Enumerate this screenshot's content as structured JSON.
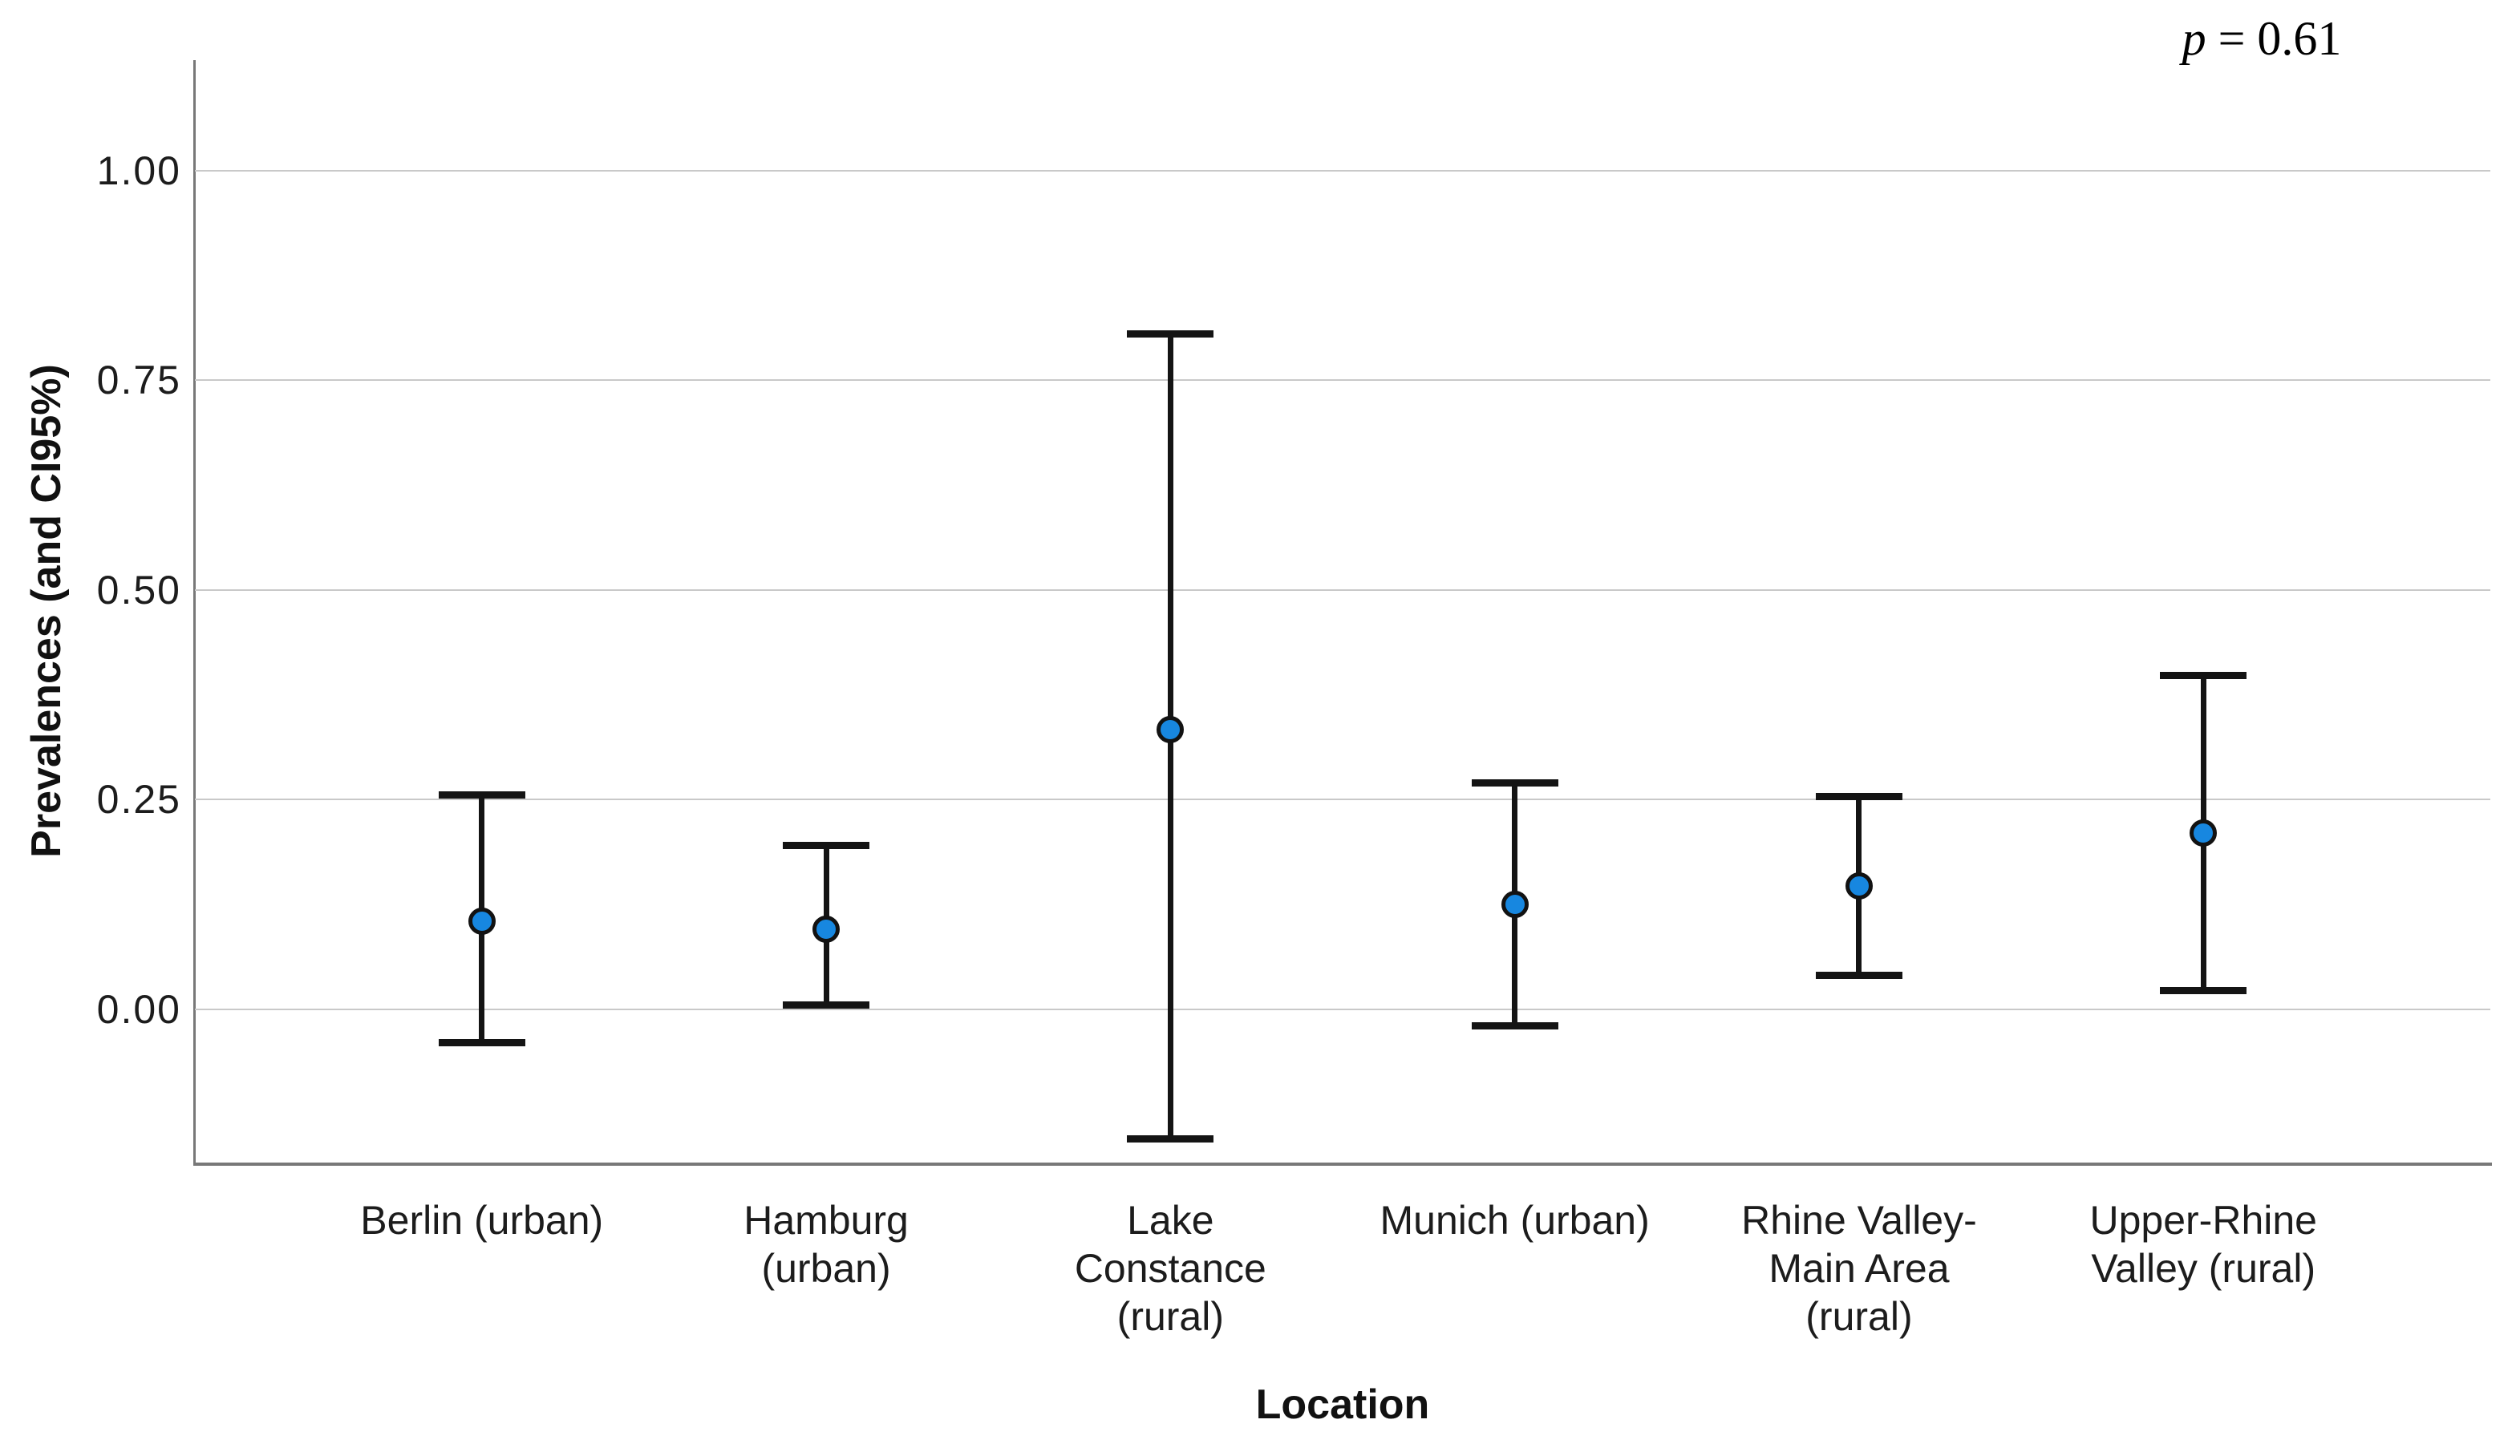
{
  "chart_data": {
    "type": "scatter",
    "subtype": "point-estimates-with-95ci-error-bars",
    "title": "",
    "xlabel": "Location",
    "ylabel": "Prevalences (and CI95%)",
    "annotation": {
      "var": "p",
      "rest": " = 0.61"
    },
    "categories": [
      "Berlin (urban)",
      "Hamburg (urban)",
      "Lake Constance (rural)",
      "Munich (urban)",
      "Rhine Valley-Main Area (rural)",
      "Upper-Rhine Valley (rural)"
    ],
    "category_label_lines": [
      [
        "Berlin (urban)"
      ],
      [
        "Hamburg",
        "(urban)"
      ],
      [
        "Lake",
        "Constance",
        "(rural)"
      ],
      [
        "Munich (urban)"
      ],
      [
        "Rhine Valley-",
        "Main Area",
        "(rural)"
      ],
      [
        "Upper-Rhine",
        "Valley (rural)"
      ]
    ],
    "series": [
      {
        "name": "Prevalence",
        "values": [
          0.105,
          0.095,
          0.333,
          0.125,
          0.147,
          0.21
        ],
        "ci_low": [
          -0.04,
          0.005,
          -0.155,
          -0.02,
          0.04,
          0.022
        ],
        "ci_high": [
          0.255,
          0.195,
          0.805,
          0.27,
          0.253,
          0.398
        ]
      }
    ],
    "y_ticks": [
      {
        "label": "1.00",
        "value": 1.0
      },
      {
        "label": "0.75",
        "value": 0.75
      },
      {
        "label": "0.50",
        "value": 0.5
      },
      {
        "label": "0.25",
        "value": 0.25
      },
      {
        "label": "0.00",
        "value": 0.0
      }
    ],
    "ylim": [
      -0.183,
      1.132
    ],
    "grid": "horizontal",
    "legend": "none",
    "colors": {
      "point_fill": "#1787e0",
      "point_border": "#121212",
      "error_bar": "#141414",
      "gridline": "#c9c9c9",
      "axis_line": "#787878",
      "text": "#1c1c1c"
    }
  }
}
